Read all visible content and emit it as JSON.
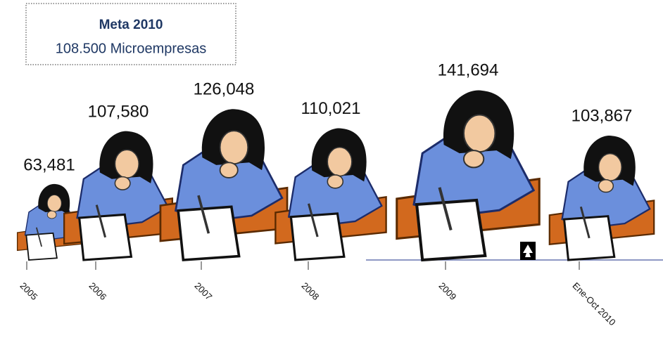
{
  "chart_data": {
    "type": "pictograph",
    "annotation": {
      "title": "Meta 2010",
      "text": "108.500 Microempresas"
    },
    "categories": [
      "2005",
      "2006",
      "2007",
      "2008",
      "2009",
      "Ene-Oct 2010"
    ],
    "values": [
      63481,
      107580,
      126048,
      110021,
      141694,
      103867
    ],
    "value_labels": [
      "63,481",
      "107,580",
      "126,048",
      "110,021",
      "141,694",
      "103,867"
    ]
  }
}
